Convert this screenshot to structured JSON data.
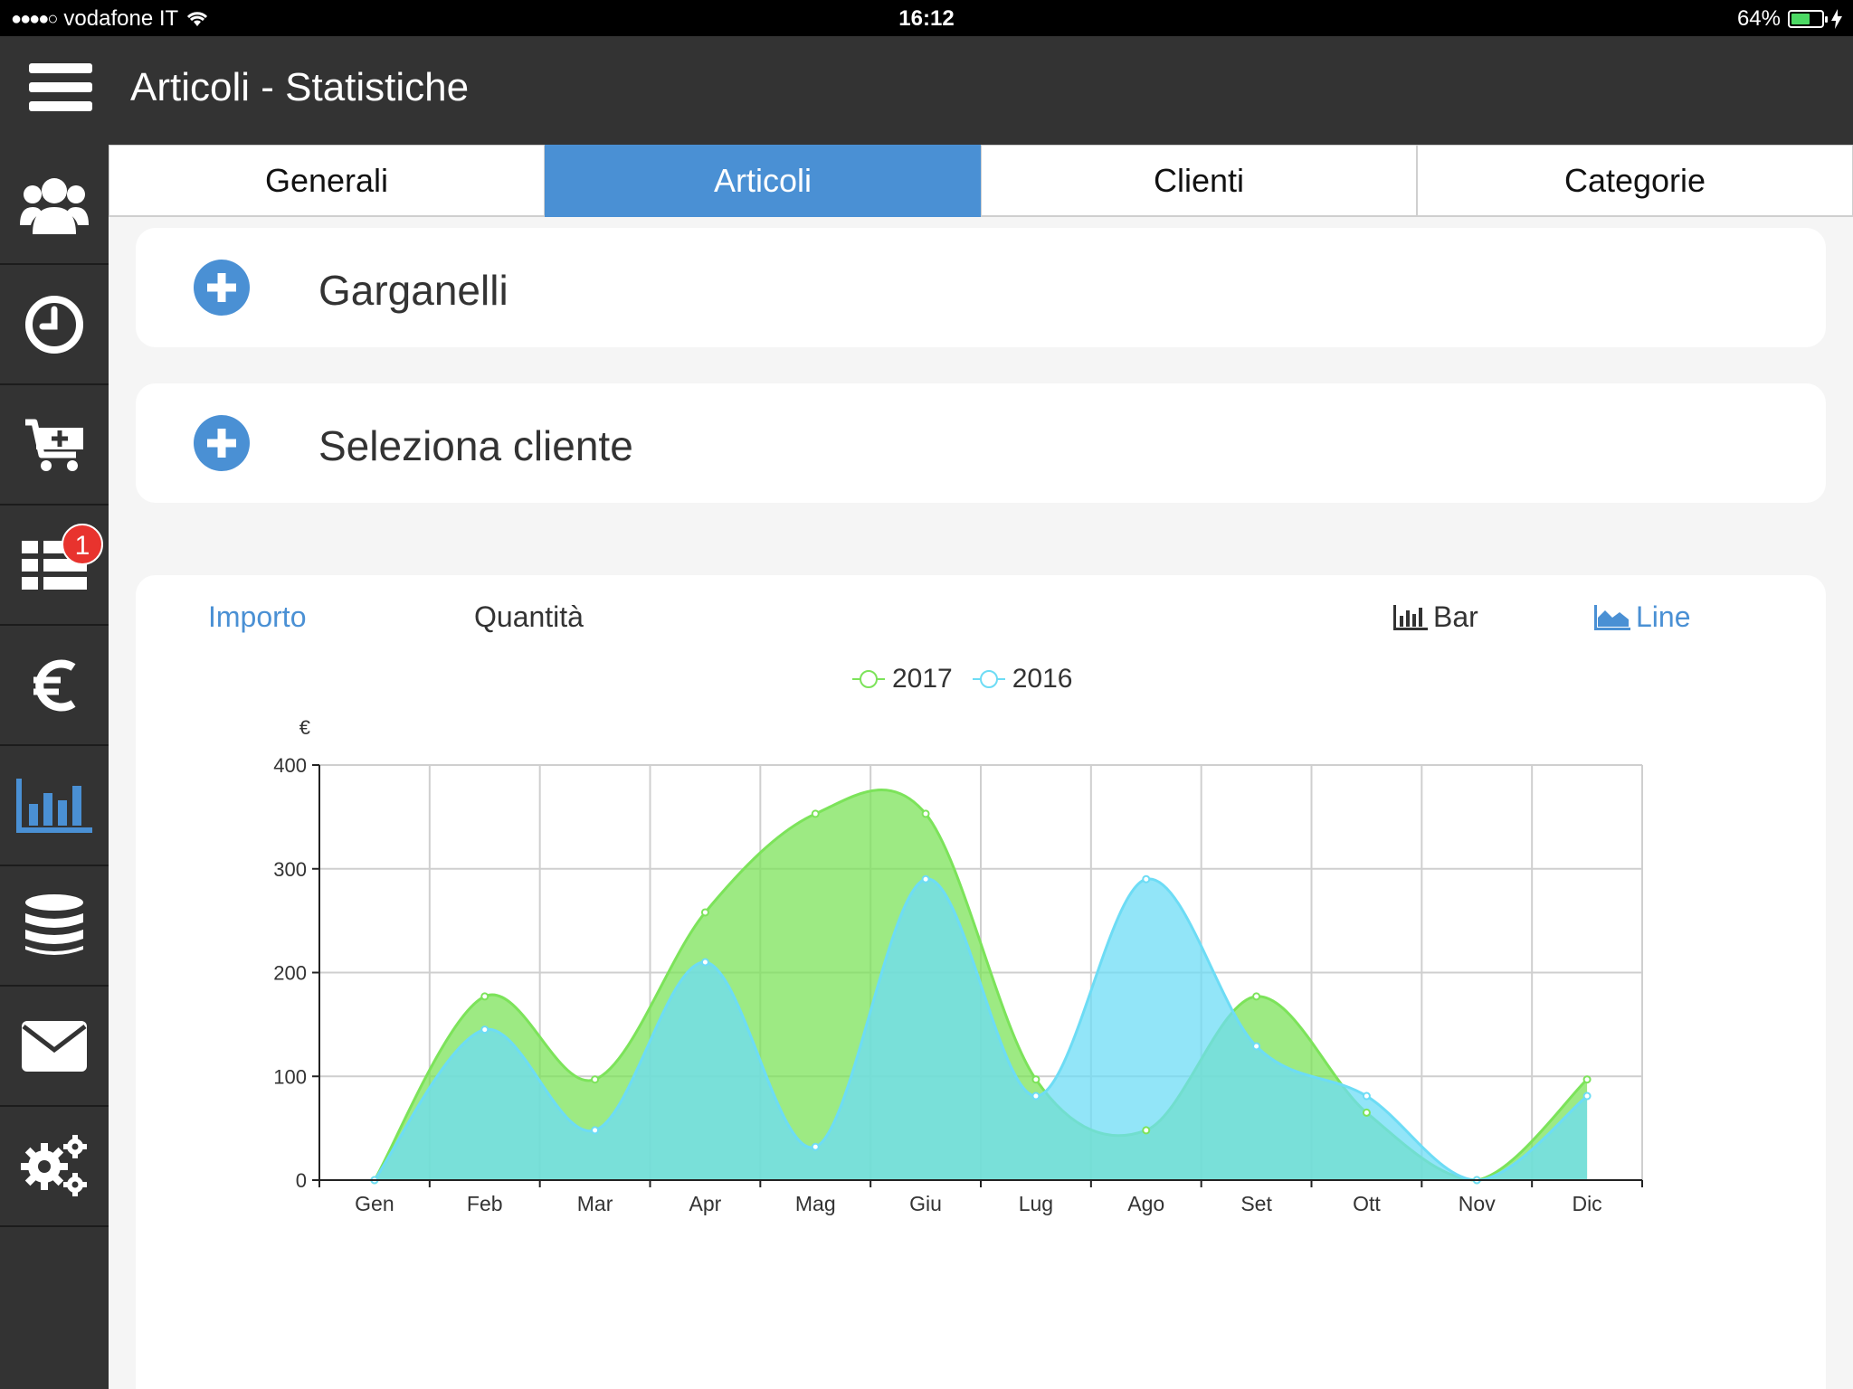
{
  "status_bar": {
    "carrier": "vodafone IT",
    "time": "16:12",
    "battery": "64%",
    "battery_level": 0.64
  },
  "header": {
    "title": "Articoli - Statistiche"
  },
  "sidebar": {
    "items": [
      {
        "icon": "users-icon"
      },
      {
        "icon": "clock-icon"
      },
      {
        "icon": "cart-add-icon"
      },
      {
        "icon": "list-icon",
        "badge": "1"
      },
      {
        "icon": "euro-icon"
      },
      {
        "icon": "bar-chart-icon",
        "active": true
      },
      {
        "icon": "database-icon"
      },
      {
        "icon": "mail-icon"
      },
      {
        "icon": "gears-icon"
      }
    ],
    "accent_color": "#4a90d4"
  },
  "tabs": [
    {
      "label": "Generali"
    },
    {
      "label": "Articoli",
      "active": true
    },
    {
      "label": "Clienti"
    },
    {
      "label": "Categorie"
    }
  ],
  "selectors": {
    "article": "Garganelli",
    "client": "Seleziona cliente"
  },
  "chart_controls": {
    "metric_amount": "Importo",
    "metric_quantity": "Quantità",
    "type_bar": "Bar",
    "type_line": "Line"
  },
  "chart_data": {
    "type": "area",
    "categories": [
      "Gen",
      "Feb",
      "Mar",
      "Apr",
      "Mag",
      "Giu",
      "Lug",
      "Ago",
      "Set",
      "Ott",
      "Nov",
      "Dic"
    ],
    "series": [
      {
        "name": "2017",
        "color": "#7ce35a",
        "values": [
          0,
          177,
          97,
          258,
          353,
          353,
          97,
          48,
          177,
          65,
          0,
          97
        ]
      },
      {
        "name": "2016",
        "color": "#6ddcf5",
        "values": [
          0,
          145,
          48,
          210,
          32,
          290,
          81,
          290,
          129,
          81,
          0,
          81
        ]
      }
    ],
    "ylabel": "€",
    "yticks": [
      0,
      100,
      200,
      300,
      400
    ],
    "ylim": [
      0,
      400
    ],
    "grid": true,
    "legend": "top-center"
  }
}
